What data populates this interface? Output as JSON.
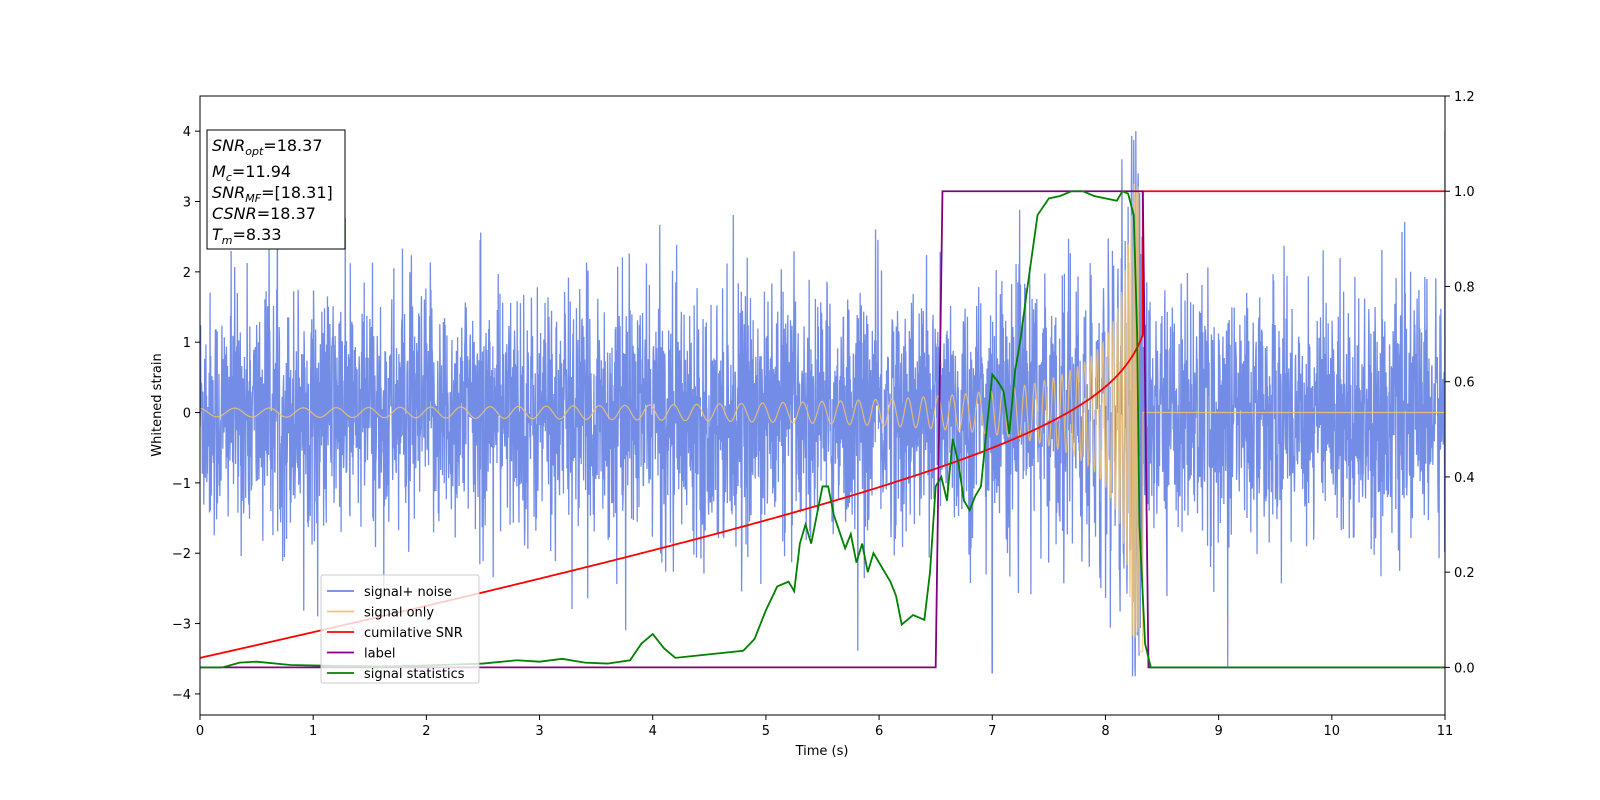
{
  "chart_data": {
    "type": "line",
    "title": "",
    "xlabel": "Time (s)",
    "ylabel": "Whitened strain",
    "xlim": [
      0,
      11
    ],
    "ylim": [
      -4.3,
      4.5
    ],
    "y2lim": [
      -0.1,
      1.2
    ],
    "x_ticks": [
      "0",
      "1",
      "2",
      "3",
      "4",
      "5",
      "6",
      "7",
      "8",
      "9",
      "10",
      "11"
    ],
    "y_ticks": [
      "4",
      "3",
      "2",
      "1",
      "0",
      "−1",
      "−2",
      "−3",
      "−4"
    ],
    "y2_ticks": [
      "1.2",
      "1.0",
      "0.8",
      "0.6",
      "0.4",
      "0.2",
      "0.0"
    ],
    "grid": false,
    "legend_position": "lower-left",
    "series": [
      {
        "name": "signal+ noise",
        "axis": "left",
        "color": "#6b87e6",
        "description_values": {
          "amplitude_range": [
            -3.7,
            4.0
          ],
          "typical_std": 0.9
        }
      },
      {
        "name": "signal only",
        "axis": "left",
        "color": "#f5c36b",
        "chirp": {
          "start_amplitude": 0.06,
          "merger_time": 8.33,
          "peak_amplitude": 3.3
        }
      },
      {
        "name": "cumilative SNR",
        "axis": "right",
        "color": "#ff0000",
        "x": [
          0,
          1,
          2,
          3,
          4,
          5,
          6,
          6.5,
          7,
          7.5,
          7.9,
          8.1,
          8.2,
          8.3,
          8.33,
          11
        ],
        "values": [
          0.02,
          0.06,
          0.09,
          0.12,
          0.155,
          0.19,
          0.24,
          0.27,
          0.33,
          0.42,
          0.53,
          0.64,
          0.75,
          0.9,
          1.0,
          1.0
        ]
      },
      {
        "name": "label",
        "axis": "right",
        "color": "#800080",
        "x": [
          0,
          6.5,
          6.56,
          8.33,
          8.38,
          11
        ],
        "values": [
          0,
          0,
          1.0,
          1.0,
          0,
          0
        ]
      },
      {
        "name": "signal statistics",
        "axis": "right",
        "color": "#008000",
        "x": [
          0,
          0.2,
          0.35,
          0.5,
          0.8,
          1.2,
          1.6,
          2.0,
          2.5,
          2.8,
          3.0,
          3.2,
          3.4,
          3.6,
          3.8,
          3.9,
          4.0,
          4.1,
          4.2,
          4.4,
          4.6,
          4.8,
          4.9,
          5.0,
          5.1,
          5.2,
          5.25,
          5.3,
          5.35,
          5.4,
          5.5,
          5.55,
          5.6,
          5.7,
          5.75,
          5.8,
          5.85,
          5.9,
          5.95,
          6.0,
          6.1,
          6.15,
          6.2,
          6.25,
          6.3,
          6.4,
          6.45,
          6.5,
          6.55,
          6.6,
          6.65,
          6.7,
          6.75,
          6.8,
          6.85,
          6.9,
          6.95,
          7.0,
          7.05,
          7.1,
          7.15,
          7.2,
          7.25,
          7.3,
          7.4,
          7.5,
          7.6,
          7.7,
          7.8,
          7.9,
          8.0,
          8.1,
          8.15,
          8.2,
          8.25,
          8.28,
          8.3,
          8.35,
          8.4,
          11
        ],
        "values": [
          0,
          0.0,
          0.01,
          0.012,
          0.005,
          0.003,
          0.002,
          0.004,
          0.008,
          0.015,
          0.012,
          0.018,
          0.01,
          0.008,
          0.015,
          0.05,
          0.07,
          0.04,
          0.02,
          0.025,
          0.03,
          0.035,
          0.06,
          0.12,
          0.17,
          0.18,
          0.16,
          0.26,
          0.3,
          0.26,
          0.38,
          0.38,
          0.32,
          0.25,
          0.28,
          0.22,
          0.26,
          0.2,
          0.24,
          0.22,
          0.18,
          0.15,
          0.09,
          0.1,
          0.11,
          0.1,
          0.2,
          0.38,
          0.4,
          0.35,
          0.48,
          0.43,
          0.35,
          0.33,
          0.36,
          0.38,
          0.5,
          0.615,
          0.6,
          0.58,
          0.49,
          0.62,
          0.69,
          0.78,
          0.95,
          0.985,
          0.99,
          1.0,
          1.0,
          0.99,
          0.985,
          0.98,
          1.0,
          0.995,
          0.95,
          0.7,
          0.3,
          0.05,
          0.0,
          0.0
        ]
      }
    ]
  },
  "info_box": {
    "snr_opt_label": "SNR",
    "snr_opt_sub": "opt",
    "snr_opt_value": "=18.37",
    "mc_label": "M",
    "mc_sub": "c",
    "mc_value": "=11.94",
    "snr_mf_label": "SNR",
    "snr_mf_sub": "MF",
    "snr_mf_value": "=[18.31]",
    "csnr_label": "CSNR",
    "csnr_value": "=18.37",
    "tm_label": "T",
    "tm_sub": "m",
    "tm_value": "=8.33"
  },
  "legend": {
    "items": [
      {
        "label": "signal+ noise",
        "color": "#6b87e6"
      },
      {
        "label": "signal only",
        "color": "#f5c36b"
      },
      {
        "label": "cumilative SNR",
        "color": "#ff0000"
      },
      {
        "label": "label",
        "color": "#800080"
      },
      {
        "label": "signal statistics",
        "color": "#008000"
      }
    ]
  }
}
